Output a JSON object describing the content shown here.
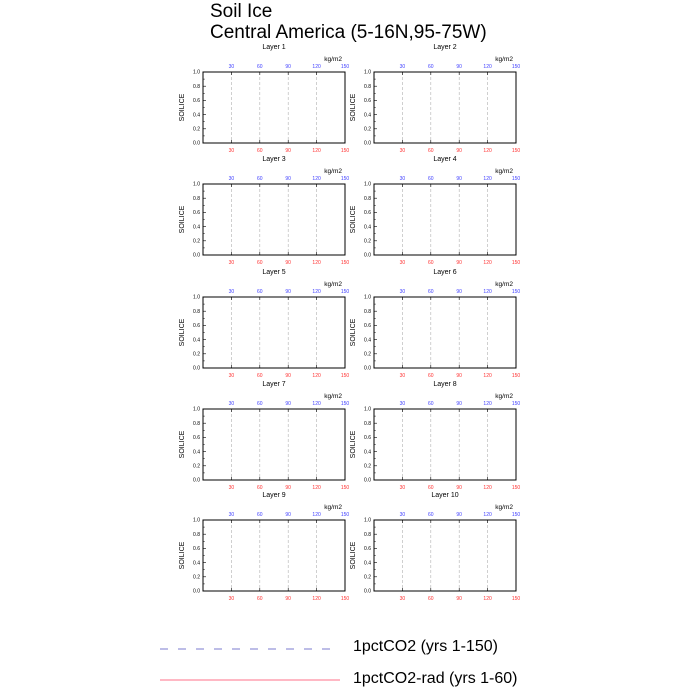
{
  "title": "Soil Ice",
  "subtitle": "Central America (5-16N,95-75W)",
  "chart_data": {
    "type": "line",
    "ylabel": "SOILICE",
    "units": "kg/m2",
    "ylim": [
      0,
      1.0
    ],
    "y_ticks": [
      "0.0",
      "0.2",
      "0.4",
      "0.6",
      "0.8",
      "1.0"
    ],
    "top_axis": {
      "range": [
        0,
        150
      ],
      "ticks": [
        "30",
        "60",
        "90",
        "120",
        "150"
      ],
      "color": "#4040ff"
    },
    "bottom_axis": {
      "range": [
        0,
        150
      ],
      "ticks": [
        "30",
        "60",
        "90",
        "120",
        "150"
      ],
      "color": "#ff3030"
    },
    "grid": "vertical dashed",
    "panels": [
      {
        "label": "Layer 1"
      },
      {
        "label": "Layer 2"
      },
      {
        "label": "Layer 3"
      },
      {
        "label": "Layer 4"
      },
      {
        "label": "Layer 5"
      },
      {
        "label": "Layer 6"
      },
      {
        "label": "Layer 7"
      },
      {
        "label": "Layer 8"
      },
      {
        "label": "Layer 9"
      },
      {
        "label": "Layer 10"
      }
    ],
    "legend": [
      {
        "name": "1pctCO2 (yrs 1-150)",
        "color": "#5050c0",
        "style": "dashed"
      },
      {
        "name": "1pctCO2-rad (yrs 1-60)",
        "color": "#ff4060",
        "style": "solid"
      }
    ],
    "legend_position": "bottom"
  }
}
